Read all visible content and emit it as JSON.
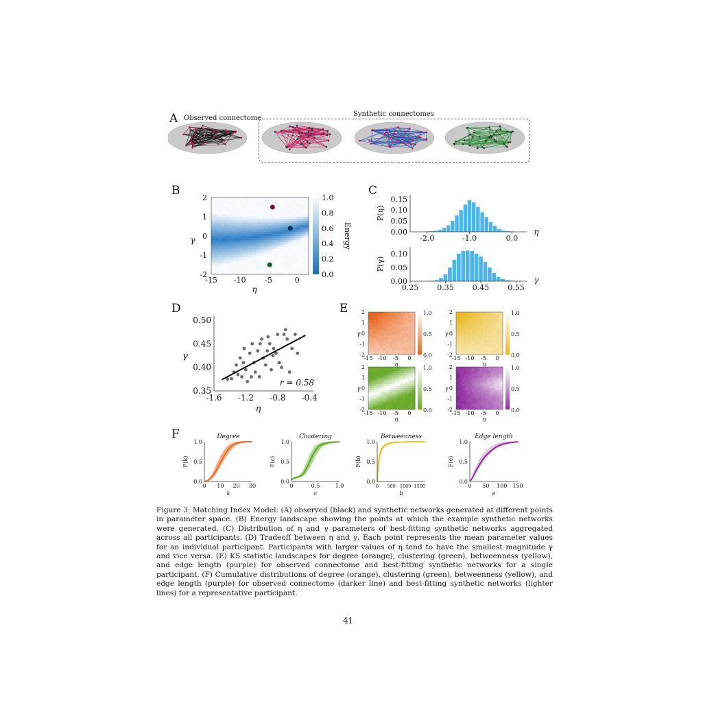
{
  "panels": {
    "a": {
      "letter": "A",
      "observed_label": "Observed connectome",
      "synthetic_label": "Synthetic connectomes",
      "colors": {
        "observed": "#111111",
        "synthetic1": "#c2185b",
        "synthetic2": "#2b4fa8",
        "synthetic3": "#2e8b3a"
      }
    },
    "b": {
      "letter": "B"
    },
    "c": {
      "letter": "C"
    },
    "d": {
      "letter": "D"
    },
    "e": {
      "letter": "E"
    },
    "f": {
      "letter": "F"
    }
  },
  "chart_data": [
    {
      "id": "B",
      "type": "heatmap",
      "xlabel": "η",
      "ylabel": "γ",
      "xticks": [
        "-15",
        "-10",
        "-5",
        "0"
      ],
      "yticks": [
        "2",
        "1",
        "0",
        "-1",
        "-2"
      ],
      "xlim": [
        -15,
        2
      ],
      "ylim": [
        -2,
        2
      ],
      "colorbar_label": "Energy",
      "colorbar_ticks": [
        "1.0",
        "0.8",
        "0.6",
        "0.4",
        "0.2",
        "0.0"
      ],
      "points": [
        {
          "eta": -4.3,
          "gamma": 1.5,
          "color": "#7b1040"
        },
        {
          "eta": -1.2,
          "gamma": 0.4,
          "color": "#0a2a5a"
        },
        {
          "eta": -4.8,
          "gamma": -1.5,
          "color": "#0e5e2a"
        }
      ]
    },
    {
      "id": "C-eta",
      "type": "bar",
      "xlabel": "η",
      "ylabel": "P(η)",
      "xticks": [
        "-2.0",
        "-1.0",
        "0.0"
      ],
      "yticks": [
        "0.15",
        "0.10",
        "0.05",
        "0.00"
      ],
      "xlim": [
        -2.4,
        0.35
      ],
      "ylim": [
        0,
        0.17
      ],
      "bin_width": 0.1,
      "x": [
        -2.0,
        -1.9,
        -1.8,
        -1.7,
        -1.6,
        -1.5,
        -1.4,
        -1.3,
        -1.2,
        -1.1,
        -1.0,
        -0.9,
        -0.8,
        -0.7,
        -0.6,
        -0.5,
        -0.4,
        -0.3,
        -0.2,
        -0.1,
        0.0
      ],
      "values": [
        0.002,
        0.003,
        0.005,
        0.009,
        0.018,
        0.03,
        0.05,
        0.075,
        0.1,
        0.125,
        0.145,
        0.135,
        0.115,
        0.09,
        0.068,
        0.045,
        0.028,
        0.012,
        0.006,
        0.003,
        0.002
      ]
    },
    {
      "id": "C-gamma",
      "type": "bar",
      "xlabel": "γ",
      "ylabel": "P(γ)",
      "xticks": [
        "0.25",
        "0.35",
        "0.45",
        "0.55"
      ],
      "yticks": [
        "0.10",
        "0.05",
        "0.00"
      ],
      "xlim": [
        0.25,
        0.58
      ],
      "ylim": [
        0,
        0.125
      ],
      "bin_width": 0.0125,
      "x": [
        0.3,
        0.3125,
        0.325,
        0.3375,
        0.35,
        0.3625,
        0.375,
        0.3875,
        0.4,
        0.4125,
        0.425,
        0.4375,
        0.45,
        0.4625,
        0.475,
        0.4875,
        0.5,
        0.5125,
        0.525,
        0.5375
      ],
      "values": [
        0.001,
        0.002,
        0.004,
        0.012,
        0.025,
        0.05,
        0.078,
        0.1,
        0.11,
        0.112,
        0.11,
        0.1,
        0.09,
        0.07,
        0.05,
        0.03,
        0.015,
        0.008,
        0.004,
        0.002
      ]
    },
    {
      "id": "D",
      "type": "scatter",
      "xlabel": "η",
      "ylabel": "γ",
      "xticks": [
        "-1.6",
        "-1.2",
        "-0.8",
        "-0.4"
      ],
      "yticks": [
        "0.50",
        "0.45",
        "0.40",
        "0.35"
      ],
      "xlim": [
        -1.6,
        -0.35
      ],
      "ylim": [
        0.35,
        0.51
      ],
      "annotation": "r = 0.58",
      "fit_line": {
        "x": [
          -1.5,
          -0.45
        ],
        "y": [
          0.374,
          0.468
        ]
      },
      "x": [
        -1.43,
        -1.38,
        -1.35,
        -1.32,
        -1.3,
        -1.27,
        -1.25,
        -1.22,
        -1.2,
        -1.18,
        -1.15,
        -1.13,
        -1.12,
        -1.1,
        -1.08,
        -1.05,
        -1.03,
        -1.0,
        -0.98,
        -0.95,
        -0.93,
        -0.9,
        -0.88,
        -0.85,
        -0.82,
        -0.8,
        -0.78,
        -0.75,
        -0.72,
        -0.7,
        -0.68,
        -0.65,
        -0.62,
        -0.58,
        -0.55,
        -1.23,
        -1.02,
        -0.92,
        -0.86
      ],
      "y": [
        0.375,
        0.376,
        0.39,
        0.405,
        0.385,
        0.42,
        0.38,
        0.44,
        0.395,
        0.37,
        0.43,
        0.38,
        0.45,
        0.41,
        0.39,
        0.435,
        0.38,
        0.46,
        0.42,
        0.405,
        0.435,
        0.45,
        0.395,
        0.44,
        0.43,
        0.47,
        0.41,
        0.4,
        0.47,
        0.48,
        0.46,
        0.39,
        0.44,
        0.47,
        0.43,
        0.41,
        0.45,
        0.465,
        0.425
      ]
    },
    {
      "id": "E",
      "type": "heatmap",
      "xlabel": "η",
      "ylabel": "γ",
      "xticks": [
        "-15",
        "-10",
        "-5",
        "0"
      ],
      "yticks": [
        "2",
        "1",
        "0",
        "-1",
        "-2"
      ],
      "colorbar_ticks": [
        "1.0",
        "0.5",
        "0.0"
      ],
      "panels": [
        {
          "name": "degree",
          "color": "#e8631b"
        },
        {
          "name": "betweenness",
          "color": "#e8b81f"
        },
        {
          "name": "clustering",
          "color": "#6aaa2a"
        },
        {
          "name": "edge length",
          "color": "#8e2c9e"
        }
      ]
    },
    {
      "id": "F",
      "type": "line",
      "ylabel_ticks": [
        "1.0",
        "0.5",
        "0.0"
      ],
      "panels": [
        {
          "title": "Degree",
          "xlabel": "k",
          "ylabel": "F(k)",
          "color": "#e8631b",
          "light": "#f4a77a",
          "xticks": [
            "0",
            "10",
            "20",
            "30"
          ],
          "xlim": [
            0,
            30
          ],
          "x": [
            0,
            2,
            4,
            6,
            8,
            10,
            12,
            14,
            16,
            18,
            20,
            22,
            24,
            26,
            28,
            30
          ],
          "y": [
            0,
            0.02,
            0.08,
            0.18,
            0.32,
            0.48,
            0.62,
            0.75,
            0.85,
            0.92,
            0.96,
            0.98,
            0.99,
            1,
            1,
            1
          ]
        },
        {
          "title": "Clustering",
          "xlabel": "c",
          "ylabel": "F(c)",
          "color": "#5c9e24",
          "light": "#9fd27a",
          "xticks": [
            "0",
            "0.5",
            "1.0"
          ],
          "xlim": [
            0,
            1
          ],
          "x": [
            0,
            0.05,
            0.1,
            0.15,
            0.2,
            0.25,
            0.3,
            0.35,
            0.4,
            0.45,
            0.5,
            0.55,
            0.6,
            0.7,
            0.8,
            0.9,
            1.0
          ],
          "y": [
            0.05,
            0.08,
            0.1,
            0.12,
            0.15,
            0.2,
            0.3,
            0.42,
            0.55,
            0.68,
            0.78,
            0.86,
            0.91,
            0.96,
            0.98,
            0.99,
            1
          ]
        },
        {
          "title": "Betweenness",
          "xlabel": "b",
          "ylabel": "F(b)",
          "color": "#e8b81f",
          "light": "#f7dc7a",
          "xticks": [
            "0",
            "500",
            "1000",
            "1500"
          ],
          "xlim": [
            0,
            1700
          ],
          "x": [
            0,
            25,
            50,
            100,
            150,
            200,
            300,
            400,
            500,
            700,
            900,
            1200,
            1500,
            1700
          ],
          "y": [
            0,
            0.3,
            0.5,
            0.7,
            0.8,
            0.86,
            0.92,
            0.95,
            0.97,
            0.985,
            0.99,
            1,
            1,
            1
          ]
        },
        {
          "title": "Edge length",
          "xlabel": "e",
          "ylabel": "F(e)",
          "color": "#8e2c9e",
          "light": "#c78fd2",
          "xticks": [
            "0",
            "50",
            "100",
            "150"
          ],
          "xlim": [
            0,
            150
          ],
          "x": [
            0,
            5,
            10,
            20,
            30,
            40,
            50,
            60,
            70,
            80,
            90,
            100,
            110,
            120,
            130,
            140,
            150
          ],
          "y": [
            0,
            0.05,
            0.12,
            0.28,
            0.42,
            0.55,
            0.65,
            0.73,
            0.8,
            0.86,
            0.9,
            0.93,
            0.95,
            0.97,
            0.98,
            0.99,
            1
          ]
        }
      ]
    }
  ],
  "caption": "Figure 3: Matching Index Model: (A) observed (black) and synthetic networks generated at different points in parameter space. (B) Energy landscape showing the points at which the example synthetic networks were generated. (C) Distribution of η and γ parameters of best-fitting synthetic networks aggregated across all participants. (D) Tradeoff between η and γ. Each point represents the mean parameter values for an individual participant. Participants with larger values of η tend to have the smallest magnitude γ and vice versa. (E) KS statistic landscapes for degree (orange), clustering (green), betweenness (yellow), and edge length (purple) for observed connectome and best-fitting synthetic networks for a single participant. (F) Cumulative distributions of degree (orange), clustering (green), betweenness (yellow), and edge length (purple) for observed connectome (darker line) and best-fitting synthetic networks (lighter lines) for a representative participant.",
  "page_number": "41"
}
